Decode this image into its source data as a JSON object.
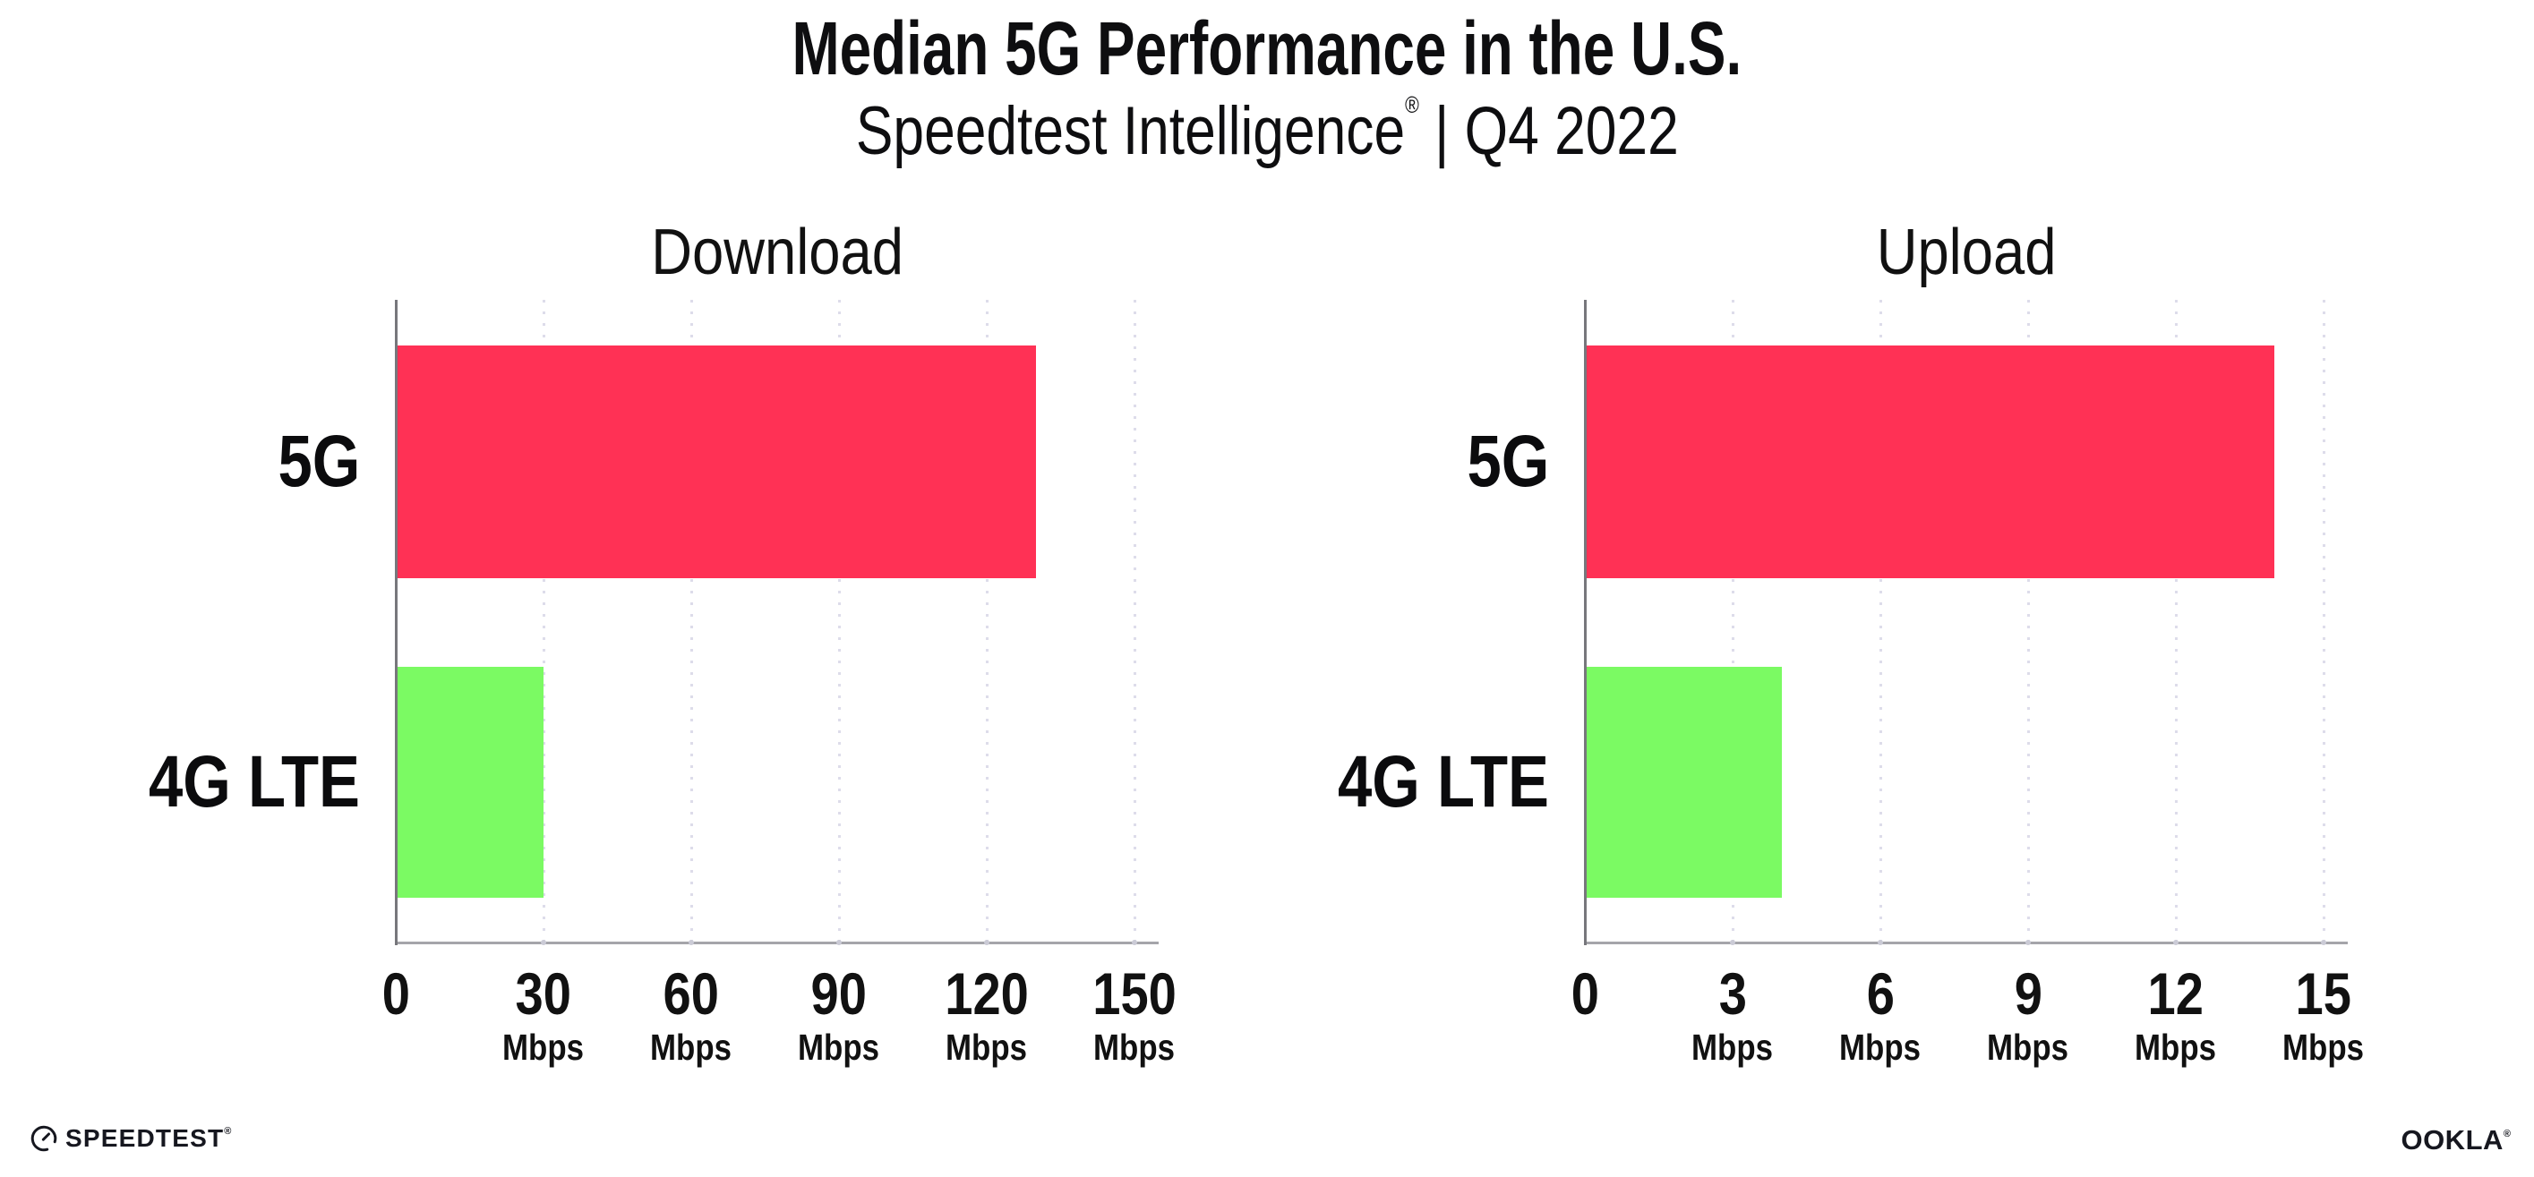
{
  "header": {
    "title": "Median 5G Performance in the U.S.",
    "subtitle_brand": "Speedtest Intelligence",
    "subtitle_reg": "®",
    "subtitle_rest": " | Q4 2022"
  },
  "chart_data": [
    {
      "type": "bar",
      "orientation": "horizontal",
      "title": "Download",
      "categories": [
        "5G",
        "4G LTE"
      ],
      "values": [
        130,
        30
      ],
      "unit": "Mbps",
      "xlim": [
        0,
        150
      ],
      "xticks": [
        0,
        30,
        60,
        90,
        120,
        150
      ],
      "tick_unit_label": "Mbps",
      "bar_colors": [
        "#FF3155",
        "#7BFA63"
      ],
      "grid": "dotted-vertical",
      "legend": "none"
    },
    {
      "type": "bar",
      "orientation": "horizontal",
      "title": "Upload",
      "categories": [
        "5G",
        "4G LTE"
      ],
      "values": [
        14,
        4
      ],
      "unit": "Mbps",
      "xlim": [
        0,
        15
      ],
      "xticks": [
        0,
        3,
        6,
        9,
        12,
        15
      ],
      "tick_unit_label": "Mbps",
      "bar_colors": [
        "#FF3155",
        "#7BFA63"
      ],
      "grid": "dotted-vertical",
      "legend": "none"
    }
  ],
  "footer": {
    "speedtest": "SPEEDTEST",
    "speedtest_reg": "®",
    "ookla": "OOKLA",
    "ookla_reg": "®"
  },
  "colors": {
    "bar_5g": "#FF3155",
    "bar_4g_lte": "#7BFA63",
    "gridline": "#DDDCEA",
    "y_axis": "#77777C",
    "x_axis": "#A5A5AA",
    "text": "#0E0E10",
    "logo": "#16171F"
  }
}
